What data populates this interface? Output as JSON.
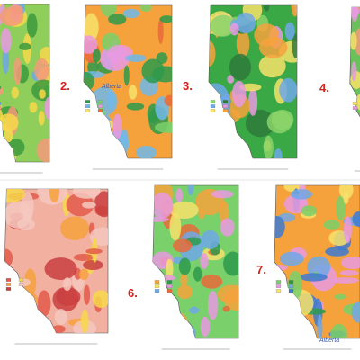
{
  "panels": [
    {
      "number": "2.",
      "logo": "Alberta"
    },
    {
      "number": "3."
    },
    {
      "number": "4."
    },
    {
      "number": "6."
    },
    {
      "number": "7.",
      "logo": "Alberta"
    }
  ]
}
